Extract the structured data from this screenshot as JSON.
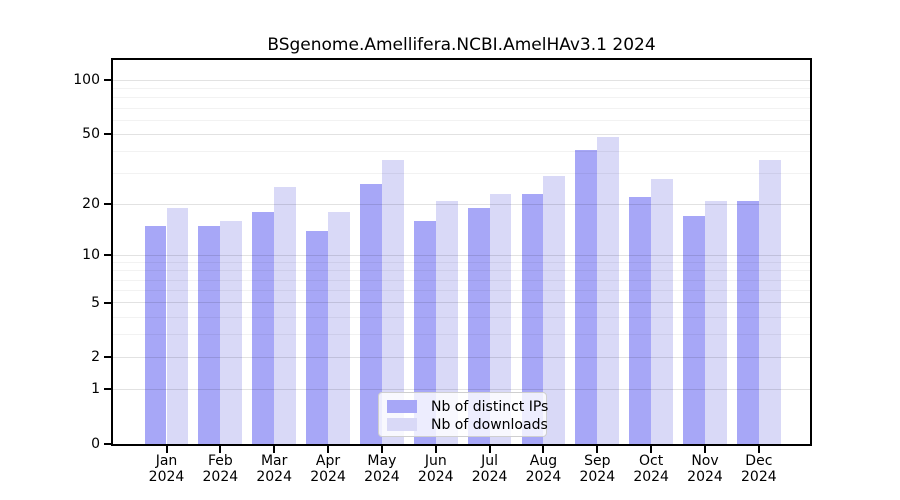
{
  "chart_data": {
    "type": "bar",
    "title": "BSgenome.Amellifera.NCBI.AmelHAv3.1 2024",
    "year": "2024",
    "categories": [
      "Jan",
      "Feb",
      "Mar",
      "Apr",
      "May",
      "Jun",
      "Jul",
      "Aug",
      "Sep",
      "Oct",
      "Nov",
      "Dec"
    ],
    "series": [
      {
        "name": "Nb of distinct IPs",
        "color": "#a7a7f7",
        "values": [
          15,
          15,
          18,
          14,
          26,
          16,
          19,
          23,
          41,
          22,
          17,
          21
        ]
      },
      {
        "name": "Nb of downloads",
        "color": "#d9d9f7",
        "values": [
          19,
          16,
          25,
          18,
          36,
          21,
          23,
          29,
          48,
          28,
          21,
          36
        ]
      }
    ],
    "yscale": "log1p",
    "ylim": [
      0,
      130
    ],
    "yticks": [
      0,
      1,
      2,
      5,
      10,
      20,
      50,
      100
    ],
    "minor_gridlines": [
      3,
      4,
      6,
      7,
      8,
      9,
      30,
      40,
      60,
      70,
      80,
      90
    ],
    "xlabel": "",
    "ylabel": "",
    "grid": true,
    "legend_position": "bottom-center-inside"
  },
  "legend": {
    "items": [
      {
        "label": "Nb of distinct IPs",
        "color": "#a7a7f7"
      },
      {
        "label": "Nb of downloads",
        "color": "#d9d9f7"
      }
    ]
  },
  "colors": {
    "ips_bar": "#a7a7f7",
    "downloads_bar": "#d9d9f7",
    "spine": "#000000",
    "background": "#ffffff"
  }
}
